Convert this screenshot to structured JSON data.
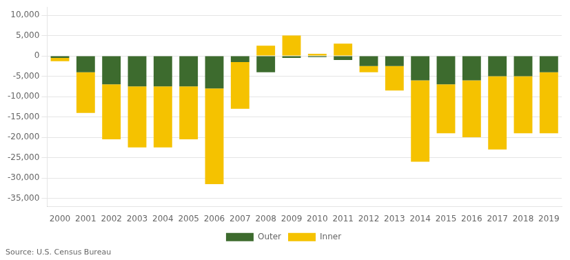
{
  "chart_data": {
    "type": "bar",
    "categories": [
      "2000",
      "2001",
      "2002",
      "2003",
      "2004",
      "2005",
      "2006",
      "2007",
      "2008",
      "2009",
      "2010",
      "2011",
      "2012",
      "2013",
      "2014",
      "2015",
      "2016",
      "2017",
      "2018",
      "2019"
    ],
    "series": [
      {
        "name": "Outer",
        "color": "#3d6b2e",
        "values": [
          -500,
          -4000,
          -7000,
          -7500,
          -7500,
          -7500,
          -8000,
          -1500,
          -4000,
          -500,
          -300,
          -1000,
          -2500,
          -2500,
          -6000,
          -7000,
          -6000,
          -5000,
          -5000,
          -4000
        ]
      },
      {
        "name": "Inner",
        "color": "#f5c200",
        "values": [
          -800,
          -10000,
          -13500,
          -15000,
          -15000,
          -13000,
          -23500,
          -11500,
          2500,
          5000,
          500,
          3000,
          -1500,
          -6000,
          -20000,
          -12000,
          -14000,
          -18000,
          -14000,
          -15000
        ]
      }
    ],
    "stacked": true,
    "ylim": [
      -37000,
      12000
    ],
    "yticks": [
      {
        "value": -35000,
        "label": "-35,000"
      },
      {
        "value": -30000,
        "label": "-30,000"
      },
      {
        "value": -25000,
        "label": "-25,000"
      },
      {
        "value": -20000,
        "label": "-20,000"
      },
      {
        "value": -15000,
        "label": "-15,000"
      },
      {
        "value": -10000,
        "label": "-10,000"
      },
      {
        "value": -5000,
        "label": "-5,000"
      },
      0,
      {
        "value": 5000,
        "label": "5,000"
      },
      {
        "value": 10000,
        "label": "10,000"
      }
    ],
    "grid": true,
    "legend": "bottom",
    "annotations": [
      "Source: U.S. Census Bureau"
    ]
  }
}
